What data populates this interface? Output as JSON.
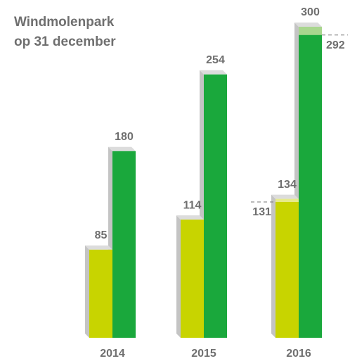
{
  "chart_data": {
    "type": "bar3d",
    "title": [
      "Windmolenpark",
      "op 31 december"
    ],
    "categories": [
      "2014",
      "2015",
      "2016"
    ],
    "series": [
      {
        "color": "#c8d400",
        "light_color": "#e6ea8c",
        "values": [
          85,
          114,
          134
        ],
        "markers": [
          null,
          null,
          131
        ]
      },
      {
        "color": "#1aa83c",
        "light_color": "#a9d68e",
        "values": [
          180,
          254,
          300
        ],
        "markers": [
          null,
          null,
          292
        ]
      }
    ]
  }
}
